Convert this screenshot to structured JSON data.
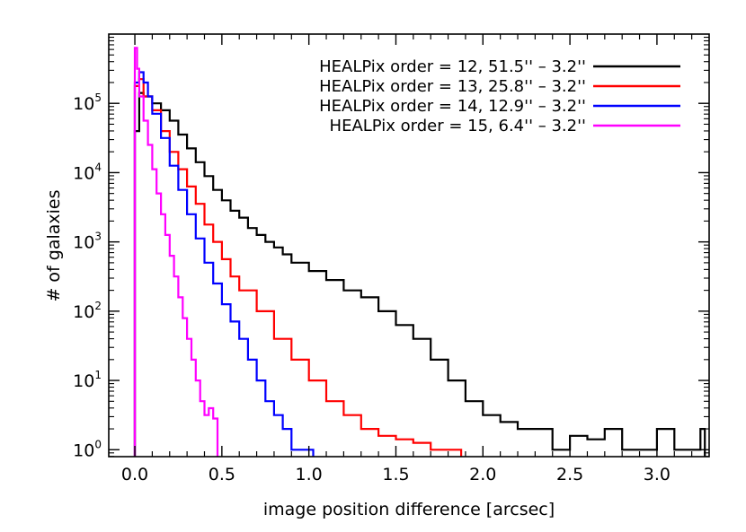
{
  "chart_data": {
    "type": "line",
    "step": true,
    "xlabel": "image position difference [arcsec]",
    "ylabel": "# of galaxies",
    "xlim": [
      -0.15,
      3.3
    ],
    "ylim_log10": [
      -0.1,
      6.0
    ],
    "yscale": "log",
    "xticks": [
      {
        "value": 0.0,
        "label": "0.0"
      },
      {
        "value": 0.5,
        "label": "0.5"
      },
      {
        "value": 1.0,
        "label": "1.0"
      },
      {
        "value": 1.5,
        "label": "1.5"
      },
      {
        "value": 2.0,
        "label": "2.0"
      },
      {
        "value": 2.5,
        "label": "2.5"
      },
      {
        "value": 3.0,
        "label": "3.0"
      }
    ],
    "yticks": [
      {
        "exp": 0,
        "base": "10",
        "sup": "0"
      },
      {
        "exp": 1,
        "base": "10",
        "sup": "1"
      },
      {
        "exp": 2,
        "base": "10",
        "sup": "2"
      },
      {
        "exp": 3,
        "base": "10",
        "sup": "3"
      },
      {
        "exp": 4,
        "base": "10",
        "sup": "4"
      },
      {
        "exp": 5,
        "base": "10",
        "sup": "5"
      }
    ],
    "legend_position": "top-right",
    "series": [
      {
        "name": "HEALPix order = 12, 51.5'' – 3.2''",
        "color": "#000000",
        "x": [
          0.0,
          0.025,
          0.05,
          0.1,
          0.15,
          0.2,
          0.25,
          0.3,
          0.35,
          0.4,
          0.45,
          0.5,
          0.55,
          0.6,
          0.65,
          0.7,
          0.75,
          0.8,
          0.85,
          0.9,
          1.0,
          1.1,
          1.2,
          1.3,
          1.4,
          1.5,
          1.6,
          1.7,
          1.8,
          1.9,
          2.0,
          2.1,
          2.2,
          2.3,
          2.4,
          2.5,
          2.6,
          2.7,
          2.8,
          2.9,
          3.0,
          3.1,
          3.2,
          3.25
        ],
        "y_log10": [
          4.6,
          5.15,
          5.1,
          5.0,
          4.9,
          4.75,
          4.55,
          4.35,
          4.15,
          3.95,
          3.75,
          3.6,
          3.45,
          3.35,
          3.2,
          3.1,
          3.0,
          2.92,
          2.82,
          2.7,
          2.58,
          2.45,
          2.3,
          2.2,
          2.0,
          1.8,
          1.6,
          1.3,
          1.0,
          0.7,
          0.5,
          0.4,
          0.3,
          0.3,
          0.0,
          0.2,
          0.15,
          0.3,
          0.0,
          0.0,
          0.3,
          0.0,
          0.0,
          0.3
        ]
      },
      {
        "name": "HEALPix order = 13, 25.8'' – 3.2''",
        "color": "#ff0000",
        "x": [
          0.0,
          0.025,
          0.05,
          0.1,
          0.15,
          0.2,
          0.25,
          0.3,
          0.35,
          0.4,
          0.45,
          0.5,
          0.55,
          0.6,
          0.7,
          0.8,
          0.9,
          1.0,
          1.1,
          1.2,
          1.3,
          1.4,
          1.5,
          1.6,
          1.7,
          1.8,
          1.85
        ],
        "y_log10": [
          5.25,
          5.35,
          5.1,
          4.9,
          4.6,
          4.3,
          4.05,
          3.8,
          3.55,
          3.25,
          3.0,
          2.75,
          2.5,
          2.3,
          2.0,
          1.6,
          1.3,
          1.0,
          0.7,
          0.5,
          0.3,
          0.2,
          0.15,
          0.1,
          0.0,
          0.0,
          0.0
        ]
      },
      {
        "name": "HEALPix order = 14, 12.9'' – 3.2''",
        "color": "#0000ff",
        "x": [
          0.0,
          0.025,
          0.05,
          0.075,
          0.1,
          0.15,
          0.2,
          0.25,
          0.3,
          0.35,
          0.4,
          0.45,
          0.5,
          0.55,
          0.6,
          0.65,
          0.7,
          0.75,
          0.8,
          0.85,
          0.9,
          0.95,
          1.0
        ],
        "y_log10": [
          5.3,
          5.45,
          5.3,
          5.1,
          4.85,
          4.5,
          4.1,
          3.75,
          3.4,
          3.05,
          2.7,
          2.4,
          2.1,
          1.85,
          1.6,
          1.3,
          1.0,
          0.7,
          0.5,
          0.3,
          0.0,
          0.0,
          0.0
        ]
      },
      {
        "name": "HEALPix order = 15, 6.4'' – 3.2''",
        "color": "#ff00ff",
        "x": [
          0.0,
          0.0125,
          0.025,
          0.05,
          0.075,
          0.1,
          0.125,
          0.15,
          0.175,
          0.2,
          0.225,
          0.25,
          0.275,
          0.3,
          0.325,
          0.35,
          0.375,
          0.4,
          0.425,
          0.45
        ],
        "y_log10": [
          5.8,
          5.5,
          5.1,
          4.75,
          4.4,
          4.05,
          3.7,
          3.4,
          3.1,
          2.8,
          2.5,
          2.2,
          1.9,
          1.6,
          1.3,
          1.0,
          0.7,
          0.5,
          0.6,
          0.45
        ]
      }
    ]
  }
}
